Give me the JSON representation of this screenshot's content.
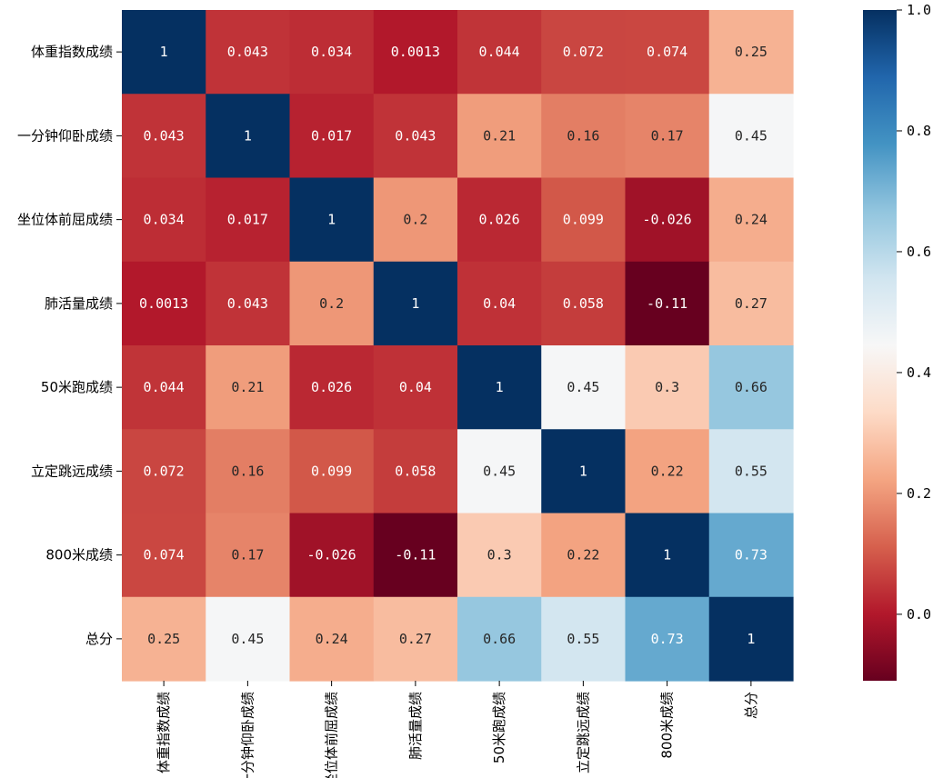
{
  "chart_data": {
    "type": "heatmap",
    "title": "",
    "labels": [
      "体重指数成绩",
      "一分钟仰卧成绩",
      "坐位体前屈成绩",
      "肺活量成绩",
      "50米跑成绩",
      "立定跳远成绩",
      "800米成绩",
      "总分"
    ],
    "matrix": [
      [
        1,
        0.043,
        0.034,
        0.0013,
        0.044,
        0.072,
        0.074,
        0.25
      ],
      [
        0.043,
        1,
        0.017,
        0.043,
        0.21,
        0.16,
        0.17,
        0.45
      ],
      [
        0.034,
        0.017,
        1,
        0.2,
        0.026,
        0.099,
        -0.026,
        0.24
      ],
      [
        0.0013,
        0.043,
        0.2,
        1,
        0.04,
        0.058,
        -0.11,
        0.27
      ],
      [
        0.044,
        0.21,
        0.026,
        0.04,
        1,
        0.45,
        0.3,
        0.66
      ],
      [
        0.072,
        0.16,
        0.099,
        0.058,
        0.45,
        1,
        0.22,
        0.55
      ],
      [
        0.074,
        0.17,
        -0.026,
        -0.11,
        0.3,
        0.22,
        1,
        0.73
      ],
      [
        0.25,
        0.45,
        0.24,
        0.27,
        0.66,
        0.55,
        0.73,
        1
      ]
    ],
    "annotations": [
      [
        "1",
        "0.043",
        "0.034",
        "0.0013",
        "0.044",
        "0.072",
        "0.074",
        "0.25"
      ],
      [
        "0.043",
        "1",
        "0.017",
        "0.043",
        "0.21",
        "0.16",
        "0.17",
        "0.45"
      ],
      [
        "0.034",
        "0.017",
        "1",
        "0.2",
        "0.026",
        "0.099",
        "-0.026",
        "0.24"
      ],
      [
        "0.0013",
        "0.043",
        "0.2",
        "1",
        "0.04",
        "0.058",
        "-0.11",
        "0.27"
      ],
      [
        "0.044",
        "0.21",
        "0.026",
        "0.04",
        "1",
        "0.45",
        "0.3",
        "0.66"
      ],
      [
        "0.072",
        "0.16",
        "0.099",
        "0.058",
        "0.45",
        "1",
        "0.22",
        "0.55"
      ],
      [
        "0.074",
        "0.17",
        "-0.026",
        "-0.11",
        "0.3",
        "0.22",
        "1",
        "0.73"
      ],
      [
        "0.25",
        "0.45",
        "0.24",
        "0.27",
        "0.66",
        "0.55",
        "0.73",
        "1"
      ]
    ],
    "colormap": "RdBu",
    "vmin": -0.11,
    "vmax": 1.0,
    "colorbar": {
      "ticks": [
        0.0,
        0.2,
        0.4,
        0.6,
        0.8,
        1.0
      ],
      "tick_labels": [
        "0.0",
        "0.2",
        "0.4",
        "0.6",
        "0.8",
        "1.0"
      ],
      "placement": "right"
    },
    "colors": {
      "low": "#67001f",
      "mid_low": "#d6604d",
      "mid": "#f7f7f7",
      "mid_high": "#4393c3",
      "high": "#053061",
      "annotation_light": "#ffffff",
      "annotation_dark": "#262626"
    }
  }
}
